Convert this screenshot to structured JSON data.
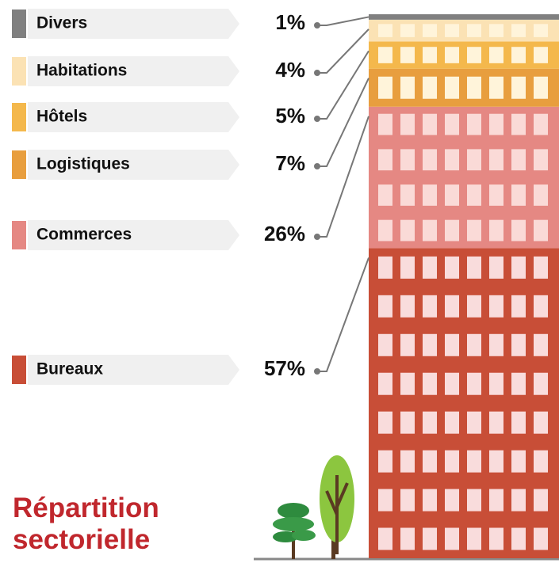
{
  "chart_data": {
    "type": "stacked-building",
    "title": "Répartition sectorielle",
    "categories": [
      "Divers",
      "Habitations",
      "Hôtels",
      "Logistiques",
      "Commerces",
      "Bureaux"
    ],
    "values": [
      1,
      4,
      5,
      7,
      26,
      57
    ],
    "value_labels": [
      "1%",
      "4%",
      "5%",
      "7%",
      "26%",
      "57%"
    ],
    "colors": [
      "#808080",
      "#fbe2b4",
      "#f4b84c",
      "#e89e3e",
      "#e58883",
      "#c84e37"
    ]
  }
}
